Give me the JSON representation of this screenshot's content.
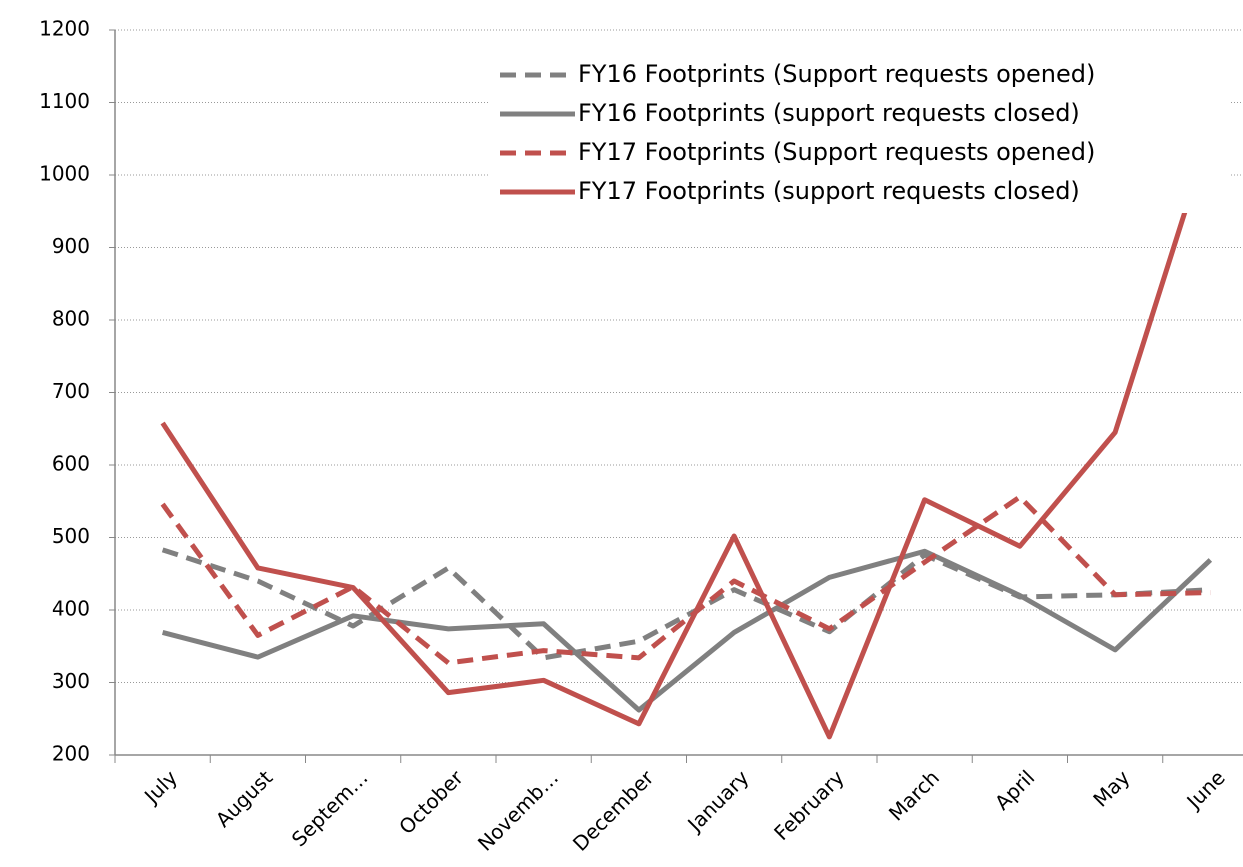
{
  "chart_data": {
    "type": "line",
    "categories": [
      "July",
      "August",
      "Septem…",
      "October",
      "Novemb…",
      "December",
      "January",
      "February",
      "March",
      "April",
      "May",
      "June"
    ],
    "series": [
      {
        "name": "FY16 Footprints (Support requests opened)",
        "color": "#808080",
        "dash": true,
        "values": [
          483,
          440,
          378,
          458,
          334,
          357,
          428,
          370,
          476,
          418,
          421,
          428
        ]
      },
      {
        "name": "FY16 Footprints (support requests closed)",
        "color": "#808080",
        "dash": false,
        "values": [
          369,
          335,
          392,
          374,
          381,
          262,
          369,
          445,
          481,
          420,
          345,
          469
        ]
      },
      {
        "name": "FY17 Footprints (Support requests opened)",
        "color": "#c0504d",
        "dash": true,
        "values": [
          546,
          365,
          432,
          327,
          344,
          334,
          440,
          374,
          466,
          556,
          421,
          424
        ]
      },
      {
        "name": "FY17 Footprints (support requests closed)",
        "color": "#c0504d",
        "dash": false,
        "values": [
          658,
          458,
          431,
          286,
          303,
          243,
          502,
          225,
          552,
          488,
          645,
          1060
        ]
      }
    ],
    "ylim": [
      200,
      1200
    ],
    "yticks": [
      200,
      300,
      400,
      500,
      600,
      700,
      800,
      900,
      1000,
      1100,
      1200
    ],
    "grid": true,
    "legend": "top-right"
  }
}
